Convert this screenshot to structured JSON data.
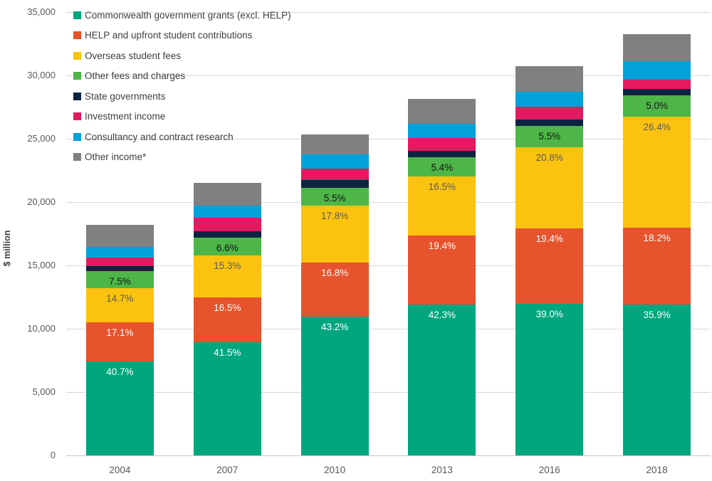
{
  "chart_data": {
    "type": "bar",
    "variant": "stacked-column",
    "title": "",
    "xlabel": "",
    "ylabel": "$ million",
    "ylim": [
      0,
      35000
    ],
    "ytick_step": 5000,
    "ytick_labels": [
      "0",
      "5,000",
      "10,000",
      "15,000",
      "20,000",
      "25,000",
      "30,000",
      "35,000"
    ],
    "categories": [
      "2004",
      "2007",
      "2010",
      "2013",
      "2016",
      "2018"
    ],
    "totals_estimated": [
      18200,
      21500,
      25349,
      28150,
      30731,
      33251
    ],
    "grid": true,
    "gridline_color": "#D9D9D9",
    "axis_line_color": "#C6C6C6",
    "axis_text_color": "#595959",
    "legend_position": "top-left-inside",
    "series": [
      {
        "name": "Commonwealth government grants (excl. HELP)",
        "color": "#00A67E",
        "label_color": "#FFFFFF",
        "values": [
          7407,
          8923,
          10951,
          11907,
          11985,
          11937
        ],
        "labels": [
          "40.7%",
          "41.5%",
          "43.2%",
          "42.3%",
          "39.0%",
          "35.9%"
        ]
      },
      {
        "name": "HELP and upfront student contributions",
        "color": "#E6532C",
        "label_color": "#FFFFFF",
        "values": [
          3112,
          3548,
          4259,
          5461,
          5962,
          6052
        ],
        "labels": [
          "17.1%",
          "16.5%",
          "16.8%",
          "19.4%",
          "19.4%",
          "18.2%"
        ]
      },
      {
        "name": "Overseas student fees",
        "color": "#FBC30F",
        "label_color": "#595959",
        "values": [
          2675,
          3290,
          4512,
          4645,
          6392,
          8778
        ],
        "labels": [
          "14.7%",
          "15.3%",
          "17.8%",
          "16.5%",
          "20.8%",
          "26.4%"
        ]
      },
      {
        "name": "Other fees and charges",
        "color": "#4EB648",
        "label_color": "#141414",
        "values": [
          1365,
          1419,
          1394,
          1520,
          1690,
          1663
        ],
        "labels": [
          "7.5%",
          "6.6%",
          "5.5%",
          "5.4%",
          "5.5%",
          "5.0%"
        ]
      },
      {
        "name": "State governments",
        "color": "#0E2343",
        "label_color": null,
        "values": [
          400,
          500,
          630,
          510,
          460,
          498
        ],
        "labels": null
      },
      {
        "name": "Investment income",
        "color": "#E31A5F",
        "label_color": null,
        "values": [
          670,
          1070,
          900,
          990,
          1030,
          761
        ],
        "labels": null
      },
      {
        "name": "Consultancy and contract research",
        "color": "#00A2D9",
        "label_color": null,
        "values": [
          840,
          970,
          1110,
          1120,
          1205,
          1430
        ],
        "labels": null
      },
      {
        "name": "Other income*",
        "color": "#808080",
        "label_color": null,
        "values": [
          1731,
          1780,
          1593,
          1997,
          2007,
          2132
        ],
        "labels": null
      }
    ]
  }
}
